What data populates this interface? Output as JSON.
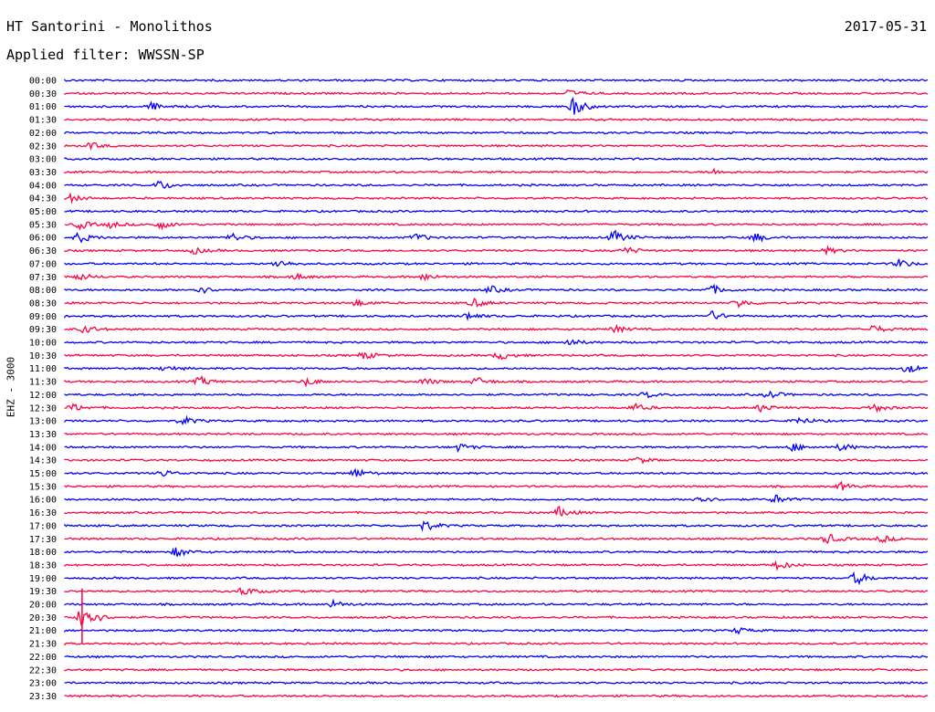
{
  "header": {
    "station": "HT Santorini - Monolithos",
    "date": "2017-05-31",
    "filter": "Applied filter: WWSSN-SP",
    "channel": "EHZ - 3000"
  },
  "colors": {
    "trace_a": "#0000ff",
    "trace_b": "#ff0040",
    "text": "#000000"
  },
  "chart_data": {
    "type": "line",
    "title": "HT Santorini - Monolithos",
    "ylabel": "EHZ - 3000",
    "x_unit": "minutes within each 30-minute row",
    "x_range": [
      0,
      30
    ],
    "row_labels": [
      "00:00",
      "00:30",
      "01:00",
      "01:30",
      "02:00",
      "02:30",
      "03:00",
      "03:30",
      "04:00",
      "04:30",
      "05:00",
      "05:30",
      "06:00",
      "06:30",
      "07:00",
      "07:30",
      "08:00",
      "08:30",
      "09:00",
      "09:30",
      "10:00",
      "10:30",
      "11:00",
      "11:30",
      "12:00",
      "12:30",
      "13:00",
      "13:30",
      "14:00",
      "14:30",
      "15:00",
      "15:30",
      "16:00",
      "16:30",
      "17:00",
      "17:30",
      "18:00",
      "18:30",
      "19:00",
      "19:30",
      "20:00",
      "20:30",
      "21:00",
      "21:30",
      "22:00",
      "22:30",
      "23:00",
      "23:30"
    ],
    "events": [
      {
        "row": 1,
        "minute": 17.5,
        "amp": 1.2
      },
      {
        "row": 2,
        "minute": 3.0,
        "amp": 1.3
      },
      {
        "row": 2,
        "minute": 17.7,
        "amp": 3.0
      },
      {
        "row": 5,
        "minute": 0.9,
        "amp": 1.0
      },
      {
        "row": 7,
        "minute": 22.5,
        "amp": 1.0
      },
      {
        "row": 8,
        "minute": 3.3,
        "amp": 1.6
      },
      {
        "row": 9,
        "minute": 0.2,
        "amp": 1.2
      },
      {
        "row": 11,
        "minute": 0.5,
        "amp": 1.5
      },
      {
        "row": 11,
        "minute": 3.3,
        "amp": 1.5
      },
      {
        "row": 11,
        "minute": 1.6,
        "amp": 1.0
      },
      {
        "row": 12,
        "minute": 0.5,
        "amp": 1.8
      },
      {
        "row": 12,
        "minute": 5.8,
        "amp": 1.5
      },
      {
        "row": 12,
        "minute": 12.2,
        "amp": 1.3
      },
      {
        "row": 12,
        "minute": 19.1,
        "amp": 2.2
      },
      {
        "row": 12,
        "minute": 24.0,
        "amp": 1.5
      },
      {
        "row": 13,
        "minute": 4.5,
        "amp": 1.0
      },
      {
        "row": 13,
        "minute": 19.5,
        "amp": 1.3
      },
      {
        "row": 13,
        "minute": 26.5,
        "amp": 1.0
      },
      {
        "row": 14,
        "minute": 7.4,
        "amp": 1.3
      },
      {
        "row": 14,
        "minute": 29.0,
        "amp": 1.5
      },
      {
        "row": 15,
        "minute": 0.5,
        "amp": 1.3
      },
      {
        "row": 15,
        "minute": 8.0,
        "amp": 1.0
      },
      {
        "row": 15,
        "minute": 12.5,
        "amp": 1.1
      },
      {
        "row": 16,
        "minute": 4.7,
        "amp": 1.3
      },
      {
        "row": 16,
        "minute": 14.8,
        "amp": 1.2
      },
      {
        "row": 16,
        "minute": 22.5,
        "amp": 1.5
      },
      {
        "row": 17,
        "minute": 10.1,
        "amp": 1.3
      },
      {
        "row": 17,
        "minute": 14.2,
        "amp": 1.5
      },
      {
        "row": 17,
        "minute": 23.4,
        "amp": 1.5
      },
      {
        "row": 18,
        "minute": 14.0,
        "amp": 1.2
      },
      {
        "row": 18,
        "minute": 22.5,
        "amp": 1.5
      },
      {
        "row": 19,
        "minute": 0.7,
        "amp": 1.4
      },
      {
        "row": 19,
        "minute": 19.1,
        "amp": 1.2
      },
      {
        "row": 19,
        "minute": 28.1,
        "amp": 1.4
      },
      {
        "row": 20,
        "minute": 17.5,
        "amp": 1.3
      },
      {
        "row": 21,
        "minute": 10.4,
        "amp": 1.3
      },
      {
        "row": 21,
        "minute": 15.1,
        "amp": 1.5
      },
      {
        "row": 22,
        "minute": 3.5,
        "amp": 1.0
      },
      {
        "row": 22,
        "minute": 29.3,
        "amp": 1.5
      },
      {
        "row": 23,
        "minute": 4.7,
        "amp": 1.6
      },
      {
        "row": 23,
        "minute": 8.4,
        "amp": 1.3
      },
      {
        "row": 23,
        "minute": 12.5,
        "amp": 1.2
      },
      {
        "row": 23,
        "minute": 14.3,
        "amp": 1.5
      },
      {
        "row": 24,
        "minute": 20.2,
        "amp": 1.0
      },
      {
        "row": 24,
        "minute": 24.5,
        "amp": 1.3
      },
      {
        "row": 25,
        "minute": 0.3,
        "amp": 1.2
      },
      {
        "row": 25,
        "minute": 19.8,
        "amp": 1.3
      },
      {
        "row": 25,
        "minute": 24.2,
        "amp": 1.3
      },
      {
        "row": 25,
        "minute": 28.1,
        "amp": 1.4
      },
      {
        "row": 26,
        "minute": 4.1,
        "amp": 1.5
      },
      {
        "row": 26,
        "minute": 25.5,
        "amp": 1.3
      },
      {
        "row": 28,
        "minute": 13.7,
        "amp": 1.3
      },
      {
        "row": 28,
        "minute": 25.3,
        "amp": 1.3
      },
      {
        "row": 28,
        "minute": 27.0,
        "amp": 1.3
      },
      {
        "row": 29,
        "minute": 19.9,
        "amp": 1.1
      },
      {
        "row": 30,
        "minute": 3.4,
        "amp": 1.2
      },
      {
        "row": 30,
        "minute": 10.1,
        "amp": 1.6
      },
      {
        "row": 31,
        "minute": 27.0,
        "amp": 1.2
      },
      {
        "row": 32,
        "minute": 22.0,
        "amp": 1.5
      },
      {
        "row": 32,
        "minute": 24.7,
        "amp": 1.5
      },
      {
        "row": 33,
        "minute": 17.2,
        "amp": 1.8
      },
      {
        "row": 34,
        "minute": 12.5,
        "amp": 1.8
      },
      {
        "row": 35,
        "minute": 26.5,
        "amp": 1.8
      },
      {
        "row": 35,
        "minute": 28.4,
        "amp": 1.2
      },
      {
        "row": 36,
        "minute": 3.9,
        "amp": 1.6
      },
      {
        "row": 37,
        "minute": 24.8,
        "amp": 1.5
      },
      {
        "row": 38,
        "minute": 27.5,
        "amp": 2.2
      },
      {
        "row": 39,
        "minute": 6.2,
        "amp": 1.6
      },
      {
        "row": 40,
        "minute": 9.3,
        "amp": 1.3
      },
      {
        "row": 41,
        "minute": 0.6,
        "amp": 6.0
      },
      {
        "row": 42,
        "minute": 23.4,
        "amp": 1.0
      }
    ]
  }
}
